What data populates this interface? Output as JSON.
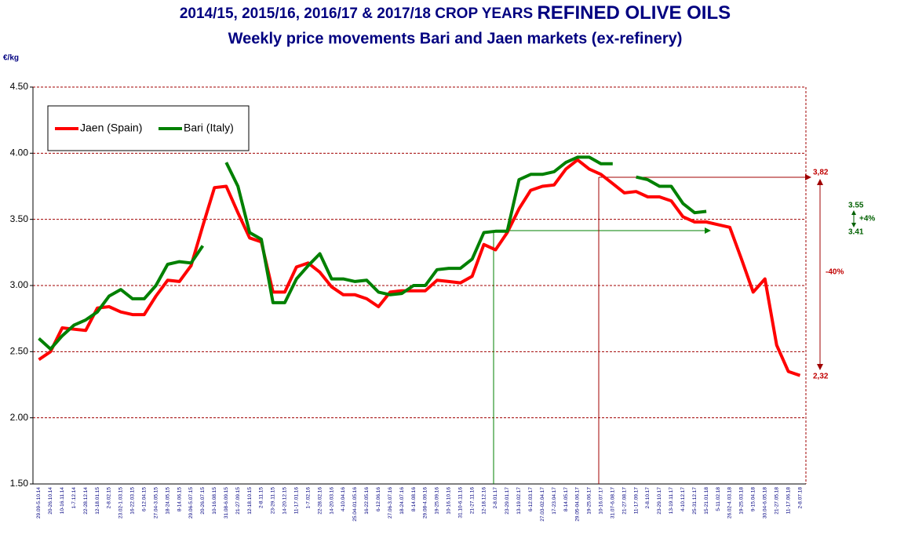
{
  "chart_data": {
    "type": "line",
    "title": [
      "2014/15,  2015/16, 2016/17  & 2017/18 CROP YEARS ",
      "REFINED OLIVE OILS"
    ],
    "subtitle": "Weekly  price movements Bari  and Jaen markets (ex-refinery)",
    "y_label": "€/kg",
    "categories": [
      "29.09-5.10.14",
      "20-26.10.14",
      "10-16.11.14",
      "1-7.12.14",
      "22-28.12.14",
      "12-18.01.15",
      "2-8.02.15",
      "23.02-1.03.15",
      "16-22.03.15",
      "6-12.04.15",
      "27.04-3.05.15",
      "18-24.05.15",
      "8-14.06.15",
      "29.06-5.07.15",
      "20-26.07.15",
      "10-16.08.15",
      "31.08-6.09.15",
      "21-27.09.15",
      "12-18.10.15",
      "2-8.11.15",
      "23-29.11.15",
      "14-20.12.15",
      "11-17.01.16",
      "1-7.02.16",
      "22-28.02.16",
      "14-20.03.16",
      "4-10.04.16",
      "25.04-01.05.16",
      "16-22.05.16",
      "6-12.06.16",
      "27.06-3.07.16",
      "18-24.07.16",
      "8-14.08.16",
      "29.08-4.09.16",
      "19-25.09.16",
      "10-16.10.16",
      "31.10-6.11.16",
      "21-27.11.16",
      "12-18.12.16",
      "2-8.01.17",
      "23-29.01.17",
      "13-19.02.17",
      "6-12.03.17",
      "27.03-02.04.17",
      "17-23.04.17",
      "8-14.05.17",
      "29.05-04.06.17",
      "19-25.06.17",
      "10-16.07.17",
      "31.07-6.08.17",
      "21-27.08.17",
      "11-17.09.17",
      "2-8.10.17",
      "23-29.10.17",
      "13-19.11.17",
      "4-10.12.17",
      "25-31.12.17",
      "15-21.01.18",
      "5-11.02.18",
      "26.02-4.03.18",
      "19-25.03.18",
      "9-15.04.18",
      "30.04-6.05.18",
      "21-27.05.18",
      "11-17.06.18",
      "2-8.07.18"
    ],
    "series": [
      {
        "name": "Jaen (Spain)",
        "color": "#ff0000",
        "values": [
          2.44,
          2.5,
          2.68,
          2.67,
          2.66,
          2.83,
          2.84,
          2.8,
          2.78,
          2.78,
          2.92,
          3.04,
          3.03,
          3.15,
          3.45,
          3.74,
          3.75,
          3.55,
          3.36,
          3.33,
          2.95,
          2.95,
          3.14,
          3.17,
          3.1,
          2.99,
          2.93,
          2.93,
          2.9,
          2.84,
          2.95,
          2.96,
          2.96,
          2.96,
          3.04,
          3.03,
          3.02,
          3.07,
          3.31,
          3.27,
          3.4,
          3.58,
          3.72,
          3.75,
          3.76,
          3.88,
          3.95,
          3.88,
          3.84,
          3.77,
          3.7,
          3.71,
          3.67,
          3.67,
          3.64,
          3.52,
          3.48,
          3.48,
          3.46,
          3.44,
          3.2,
          2.95,
          3.05,
          2.55,
          2.35,
          2.32
        ]
      },
      {
        "name": "Bari (Italy)",
        "color": "#008000",
        "values": [
          2.6,
          2.52,
          2.62,
          2.7,
          2.74,
          2.8,
          2.92,
          2.97,
          2.9,
          2.9,
          3.0,
          3.16,
          3.18,
          3.17,
          3.3,
          null,
          3.93,
          3.75,
          3.4,
          3.35,
          2.87,
          2.87,
          3.05,
          3.15,
          3.24,
          3.05,
          3.05,
          3.03,
          3.04,
          2.95,
          2.93,
          2.94,
          3.0,
          3.0,
          3.12,
          3.13,
          3.13,
          3.2,
          3.4,
          3.41,
          3.41,
          3.8,
          3.84,
          3.84,
          3.86,
          3.93,
          3.97,
          3.97,
          3.92,
          3.92,
          null,
          3.82,
          3.8,
          3.75,
          3.75,
          3.62,
          3.55,
          3.56,
          null,
          null,
          null,
          null,
          null,
          null,
          null,
          null
        ]
      }
    ],
    "ylim": [
      1.5,
      4.5
    ],
    "yticks": [
      {
        "value": 1.5,
        "label": "1.50"
      },
      {
        "value": 2,
        "label": "2.00"
      },
      {
        "value": 2.5,
        "label": "2.50"
      },
      {
        "value": 3,
        "label": "3.00"
      },
      {
        "value": 3.5,
        "label": "3.50"
      },
      {
        "value": 4,
        "label": "4.00"
      },
      {
        "value": 4.5,
        "label": "4.50"
      }
    ],
    "grid": true,
    "annotations": [
      "3,82",
      "2,32",
      "-40%",
      "3.55",
      "+4%",
      "3.41"
    ]
  }
}
